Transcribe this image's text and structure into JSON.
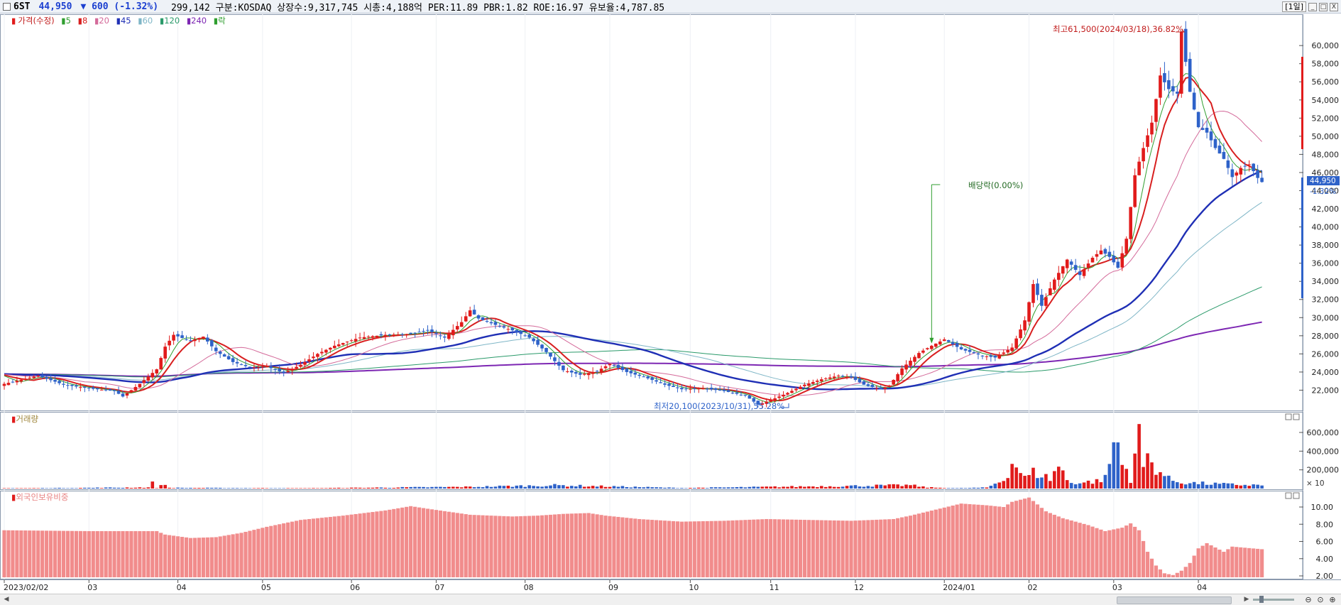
{
  "header": {
    "symbol": "6ST",
    "price": "44,950",
    "change": "▼ 600 (-1.32%)",
    "info": "299,142  구분:KOSDAQ 상장수:9,317,745 시총:4,188억 PER:11.89 PBR:1.82 ROE:16.97 유보율:4,787.85",
    "period": "[1일]",
    "minimize": "_",
    "restore": "□",
    "close": "X"
  },
  "legend": {
    "price": "가격(수정)",
    "ma5": "5",
    "ma8": "8",
    "ma20": "20",
    "ma45": "45",
    "ma60": "60",
    "ma120": "120",
    "ma240": "240",
    "dividend": "락"
  },
  "colors": {
    "up": "#e11b1b",
    "down": "#2e62c9",
    "ma5": "#2f9e2f",
    "ma8": "#d81f1f",
    "ma20": "#d46a9a",
    "ma45": "#1f2fb5",
    "ma60": "#7fb6c7",
    "ma120": "#2a9a6a",
    "ma240": "#7d27b3",
    "foreign": "#f18c8c"
  },
  "annotations": {
    "high": "최고61,500(2024/03/18),36.82%",
    "low": "최저20,100(2023/10/31),55.28%",
    "dividend": "배당락(0.00%)"
  },
  "last_price_label": {
    "price": "44,950",
    "pct": "-1.32%"
  },
  "panels": {
    "volume": "거래량",
    "foreign": "외국인보유비중",
    "volume_unit": "× 10"
  },
  "scrollbar": {
    "left_arrow": "◀",
    "right_arrow": "▶",
    "zoom_out": "⊖",
    "zoom_reset": "⊙",
    "zoom_in": "⊕"
  },
  "chart_data": {
    "type": "candlestick",
    "price_axis": [
      "60,000",
      "58,000",
      "56,000",
      "54,000",
      "52,000",
      "50,000",
      "48,000",
      "46,000",
      "44,000",
      "42,000",
      "40,000",
      "38,000",
      "36,000",
      "34,000",
      "32,000",
      "30,000",
      "28,000",
      "26,000",
      "24,000",
      "22,000"
    ],
    "price_ylim": [
      20000,
      62000
    ],
    "volume_axis": [
      "600,000",
      "400,000",
      "200,000"
    ],
    "volume_ylim": [
      0,
      700000
    ],
    "foreign_axis": [
      "10.00",
      "8.00",
      "6.00",
      "4.00",
      "2.00"
    ],
    "foreign_ylim": [
      1.5,
      11.5
    ],
    "x_labels": [
      "2023/02/02",
      "03",
      "04",
      "05",
      "06",
      "07",
      "08",
      "09",
      "10",
      "11",
      "12",
      "2024/01",
      "02",
      "03",
      "04"
    ],
    "x_label_days": [
      0,
      20,
      41,
      61,
      82,
      102,
      123,
      143,
      162,
      181,
      201,
      222,
      242,
      262,
      282
    ],
    "close_keypoints": [
      [
        0,
        22700
      ],
      [
        8,
        23600
      ],
      [
        14,
        22600
      ],
      [
        20,
        22200
      ],
      [
        26,
        21900
      ],
      [
        28,
        21300
      ],
      [
        32,
        22700
      ],
      [
        36,
        24300
      ],
      [
        38,
        26800
      ],
      [
        40,
        28100
      ],
      [
        44,
        27400
      ],
      [
        47,
        27900
      ],
      [
        50,
        26300
      ],
      [
        54,
        25100
      ],
      [
        58,
        24500
      ],
      [
        62,
        24600
      ],
      [
        66,
        23900
      ],
      [
        70,
        24800
      ],
      [
        74,
        26000
      ],
      [
        78,
        26900
      ],
      [
        84,
        27800
      ],
      [
        90,
        28100
      ],
      [
        96,
        28200
      ],
      [
        100,
        28600
      ],
      [
        104,
        27800
      ],
      [
        108,
        29500
      ],
      [
        110,
        30800
      ],
      [
        112,
        29900
      ],
      [
        116,
        29200
      ],
      [
        120,
        28600
      ],
      [
        124,
        27800
      ],
      [
        128,
        26200
      ],
      [
        132,
        24200
      ],
      [
        136,
        23700
      ],
      [
        140,
        24100
      ],
      [
        143,
        24900
      ],
      [
        147,
        24000
      ],
      [
        152,
        23300
      ],
      [
        156,
        22600
      ],
      [
        160,
        22100
      ],
      [
        165,
        22200
      ],
      [
        170,
        21900
      ],
      [
        175,
        21400
      ],
      [
        178,
        20400
      ],
      [
        181,
        20900
      ],
      [
        185,
        21700
      ],
      [
        189,
        22600
      ],
      [
        193,
        23200
      ],
      [
        197,
        23600
      ],
      [
        200,
        23400
      ],
      [
        203,
        22600
      ],
      [
        207,
        22100
      ],
      [
        209,
        22500
      ],
      [
        212,
        24400
      ],
      [
        216,
        26100
      ],
      [
        219,
        26900
      ],
      [
        222,
        27600
      ],
      [
        226,
        26500
      ],
      [
        231,
        25800
      ],
      [
        234,
        25600
      ],
      [
        238,
        26700
      ],
      [
        241,
        29700
      ],
      [
        243,
        33700
      ],
      [
        245,
        31300
      ],
      [
        248,
        34200
      ],
      [
        251,
        36400
      ],
      [
        254,
        34700
      ],
      [
        257,
        36600
      ],
      [
        259,
        37400
      ],
      [
        261,
        36700
      ],
      [
        263,
        35500
      ],
      [
        265,
        38700
      ],
      [
        267,
        45700
      ],
      [
        269,
        48700
      ],
      [
        271,
        51500
      ],
      [
        273,
        56700
      ],
      [
        275,
        55200
      ],
      [
        277,
        54700
      ],
      [
        278,
        61500
      ],
      [
        280,
        54900
      ],
      [
        282,
        51000
      ],
      [
        284,
        50400
      ],
      [
        286,
        48700
      ],
      [
        288,
        47500
      ],
      [
        290,
        45500
      ],
      [
        292,
        46500
      ],
      [
        294,
        46900
      ],
      [
        296,
        45400
      ],
      [
        297,
        44950
      ]
    ],
    "volume_keypoints": [
      [
        0,
        2
      ],
      [
        34,
        12
      ],
      [
        35,
        56
      ],
      [
        36,
        7
      ],
      [
        38,
        49
      ],
      [
        39,
        8
      ],
      [
        70,
        3
      ],
      [
        110,
        18
      ],
      [
        130,
        35
      ],
      [
        160,
        6
      ],
      [
        214,
        36
      ],
      [
        218,
        12
      ],
      [
        225,
        4
      ],
      [
        232,
        10
      ],
      [
        236,
        95
      ],
      [
        238,
        265
      ],
      [
        239,
        255
      ],
      [
        241,
        110
      ],
      [
        243,
        170
      ],
      [
        245,
        150
      ],
      [
        247,
        100
      ],
      [
        249,
        250
      ],
      [
        251,
        90
      ],
      [
        252,
        70
      ],
      [
        254,
        60
      ],
      [
        258,
        80
      ],
      [
        260,
        110
      ],
      [
        262,
        460
      ],
      [
        263,
        480
      ],
      [
        264,
        260
      ],
      [
        265,
        200
      ],
      [
        266,
        100
      ],
      [
        268,
        690
      ],
      [
        269,
        240
      ],
      [
        270,
        320
      ],
      [
        271,
        280
      ],
      [
        273,
        180
      ],
      [
        275,
        100
      ],
      [
        277,
        75
      ],
      [
        280,
        60
      ],
      [
        285,
        50
      ],
      [
        290,
        42
      ],
      [
        297,
        36
      ]
    ],
    "foreign_keypoints": [
      [
        0,
        7.3
      ],
      [
        20,
        7.2
      ],
      [
        36,
        7.2
      ],
      [
        38,
        6.8
      ],
      [
        44,
        6.4
      ],
      [
        50,
        6.5
      ],
      [
        56,
        7.0
      ],
      [
        62,
        7.7
      ],
      [
        70,
        8.5
      ],
      [
        80,
        9.0
      ],
      [
        90,
        9.6
      ],
      [
        96,
        10.1
      ],
      [
        100,
        9.8
      ],
      [
        110,
        9.1
      ],
      [
        120,
        8.9
      ],
      [
        126,
        9.0
      ],
      [
        132,
        9.2
      ],
      [
        138,
        9.3
      ],
      [
        142,
        9.0
      ],
      [
        150,
        8.6
      ],
      [
        160,
        8.3
      ],
      [
        170,
        8.4
      ],
      [
        180,
        8.6
      ],
      [
        190,
        8.5
      ],
      [
        200,
        8.4
      ],
      [
        210,
        8.6
      ],
      [
        214,
        9.0
      ],
      [
        220,
        9.7
      ],
      [
        226,
        10.4
      ],
      [
        232,
        10.2
      ],
      [
        236,
        10.0
      ],
      [
        238,
        10.6
      ],
      [
        242,
        11.1
      ],
      [
        244,
        10.3
      ],
      [
        246,
        9.5
      ],
      [
        250,
        8.7
      ],
      [
        256,
        7.9
      ],
      [
        260,
        7.2
      ],
      [
        264,
        7.6
      ],
      [
        266,
        8.1
      ],
      [
        268,
        7.3
      ],
      [
        270,
        4.8
      ],
      [
        272,
        3.2
      ],
      [
        274,
        2.3
      ],
      [
        276,
        2.1
      ],
      [
        278,
        2.6
      ],
      [
        280,
        3.5
      ],
      [
        282,
        5.2
      ],
      [
        284,
        5.8
      ],
      [
        286,
        5.3
      ],
      [
        288,
        4.8
      ],
      [
        290,
        5.4
      ],
      [
        297,
        5.1
      ]
    ],
    "marks": {
      "high_day": 278,
      "low_day": 178,
      "dividend_day": 219
    }
  }
}
